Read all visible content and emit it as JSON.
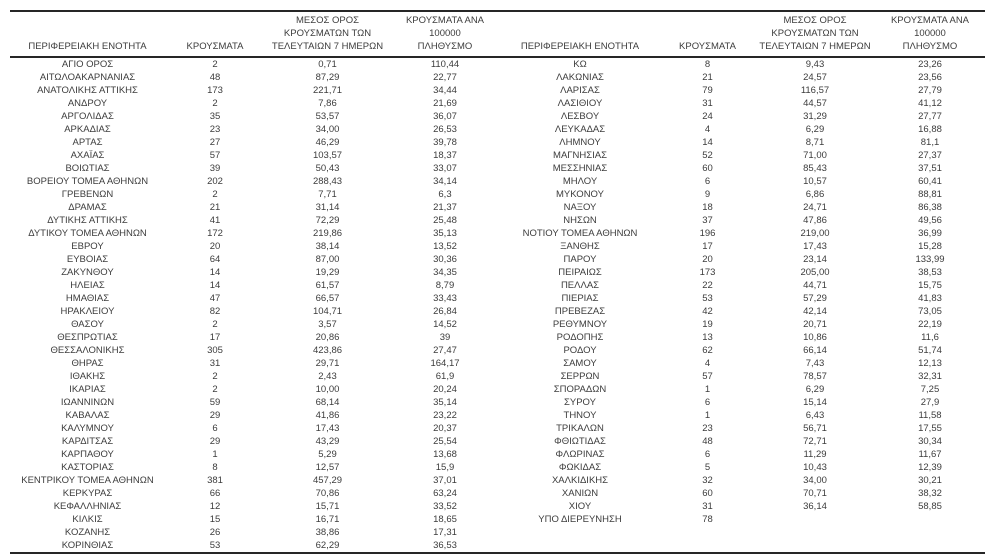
{
  "table": {
    "headers": {
      "region": "ΠΕΡΙΦΕΡΕΙΑΚΗ ΕΝΟΤΗΤΑ",
      "cases": "ΚΡΟΥΣΜΑΤΑ",
      "avg_7day": "ΜΕΣΟΣ ΟΡΟΣ\nΚΡΟΥΣΜΑΤΩΝ ΤΩΝ\nΤΕΛΕΥΤΑΙΩΝ 7 ΗΜΕΡΩΝ",
      "per_100k": "ΚΡΟΥΣΜΑΤΑ ΑΝΑ 100000\nΠΛΗΘΥΣΜΟ"
    },
    "left_rows": [
      [
        "ΑΓΙΟ ΟΡΟΣ",
        "2",
        "0,71",
        "110,44"
      ],
      [
        "ΑΙΤΩΛΟΑΚΑΡΝΑΝΙΑΣ",
        "48",
        "87,29",
        "22,77"
      ],
      [
        "ΑΝΑΤΟΛΙΚΗΣ ΑΤΤΙΚΗΣ",
        "173",
        "221,71",
        "34,44"
      ],
      [
        "ΑΝΔΡΟΥ",
        "2",
        "7,86",
        "21,69"
      ],
      [
        "ΑΡΓΟΛΙΔΑΣ",
        "35",
        "53,57",
        "36,07"
      ],
      [
        "ΑΡΚΑΔΙΑΣ",
        "23",
        "34,00",
        "26,53"
      ],
      [
        "ΑΡΤΑΣ",
        "27",
        "46,29",
        "39,78"
      ],
      [
        "ΑΧΑΪΑΣ",
        "57",
        "103,57",
        "18,37"
      ],
      [
        "ΒΟΙΩΤΙΑΣ",
        "39",
        "50,43",
        "33,07"
      ],
      [
        "ΒΟΡΕΙΟΥ ΤΟΜΕΑ ΑΘΗΝΩΝ",
        "202",
        "288,43",
        "34,14"
      ],
      [
        "ΓΡΕΒΕΝΩΝ",
        "2",
        "7,71",
        "6,3"
      ],
      [
        "ΔΡΑΜΑΣ",
        "21",
        "31,14",
        "21,37"
      ],
      [
        "ΔΥΤΙΚΗΣ ΑΤΤΙΚΗΣ",
        "41",
        "72,29",
        "25,48"
      ],
      [
        "ΔΥΤΙΚΟΥ ΤΟΜΕΑ ΑΘΗΝΩΝ",
        "172",
        "219,86",
        "35,13"
      ],
      [
        "ΕΒΡΟΥ",
        "20",
        "38,14",
        "13,52"
      ],
      [
        "ΕΥΒΟΙΑΣ",
        "64",
        "87,00",
        "30,36"
      ],
      [
        "ΖΑΚΥΝΘΟΥ",
        "14",
        "19,29",
        "34,35"
      ],
      [
        "ΗΛΕΙΑΣ",
        "14",
        "61,57",
        "8,79"
      ],
      [
        "ΗΜΑΘΙΑΣ",
        "47",
        "66,57",
        "33,43"
      ],
      [
        "ΗΡΑΚΛΕΙΟΥ",
        "82",
        "104,71",
        "26,84"
      ],
      [
        "ΘΑΣΟΥ",
        "2",
        "3,57",
        "14,52"
      ],
      [
        "ΘΕΣΠΡΩΤΙΑΣ",
        "17",
        "20,86",
        "39"
      ],
      [
        "ΘΕΣΣΑΛΟΝΙΚΗΣ",
        "305",
        "423,86",
        "27,47"
      ],
      [
        "ΘΗΡΑΣ",
        "31",
        "29,71",
        "164,17"
      ],
      [
        "ΙΘΑΚΗΣ",
        "2",
        "2,43",
        "61,9"
      ],
      [
        "ΙΚΑΡΙΑΣ",
        "2",
        "10,00",
        "20,24"
      ],
      [
        "ΙΩΑΝΝΙΝΩΝ",
        "59",
        "68,14",
        "35,14"
      ],
      [
        "ΚΑΒΑΛΑΣ",
        "29",
        "41,86",
        "23,22"
      ],
      [
        "ΚΑΛΥΜΝΟΥ",
        "6",
        "17,43",
        "20,37"
      ],
      [
        "ΚΑΡΔΙΤΣΑΣ",
        "29",
        "43,29",
        "25,54"
      ],
      [
        "ΚΑΡΠΑΘΟΥ",
        "1",
        "5,29",
        "13,68"
      ],
      [
        "ΚΑΣΤΟΡΙΑΣ",
        "8",
        "12,57",
        "15,9"
      ],
      [
        "ΚΕΝΤΡΙΚΟΥ ΤΟΜΕΑ ΑΘΗΝΩΝ",
        "381",
        "457,29",
        "37,01"
      ],
      [
        "ΚΕΡΚΥΡΑΣ",
        "66",
        "70,86",
        "63,24"
      ],
      [
        "ΚΕΦΑΛΛΗΝΙΑΣ",
        "12",
        "15,71",
        "33,52"
      ],
      [
        "ΚΙΛΚΙΣ",
        "15",
        "16,71",
        "18,65"
      ],
      [
        "ΚΟΖΑΝΗΣ",
        "26",
        "38,86",
        "17,31"
      ],
      [
        "ΚΟΡΙΝΘΙΑΣ",
        "53",
        "62,29",
        "36,53"
      ]
    ],
    "right_rows": [
      [
        "ΚΩ",
        "8",
        "9,43",
        "23,26"
      ],
      [
        "ΛΑΚΩΝΙΑΣ",
        "21",
        "24,57",
        "23,56"
      ],
      [
        "ΛΑΡΙΣΑΣ",
        "79",
        "116,57",
        "27,79"
      ],
      [
        "ΛΑΣΙΘΙΟΥ",
        "31",
        "44,57",
        "41,12"
      ],
      [
        "ΛΕΣΒΟΥ",
        "24",
        "31,29",
        "27,77"
      ],
      [
        "ΛΕΥΚΑΔΑΣ",
        "4",
        "6,29",
        "16,88"
      ],
      [
        "ΛΗΜΝΟΥ",
        "14",
        "8,71",
        "81,1"
      ],
      [
        "ΜΑΓΝΗΣΙΑΣ",
        "52",
        "71,00",
        "27,37"
      ],
      [
        "ΜΕΣΣΗΝΙΑΣ",
        "60",
        "85,43",
        "37,51"
      ],
      [
        "ΜΗΛΟΥ",
        "6",
        "10,57",
        "60,41"
      ],
      [
        "ΜΥΚΟΝΟΥ",
        "9",
        "6,86",
        "88,81"
      ],
      [
        "ΝΑΞΟΥ",
        "18",
        "24,71",
        "86,38"
      ],
      [
        "ΝΗΣΩΝ",
        "37",
        "47,86",
        "49,56"
      ],
      [
        "ΝΟΤΙΟΥ ΤΟΜΕΑ ΑΘΗΝΩΝ",
        "196",
        "219,00",
        "36,99"
      ],
      [
        "ΞΑΝΘΗΣ",
        "17",
        "17,43",
        "15,28"
      ],
      [
        "ΠΑΡΟΥ",
        "20",
        "23,14",
        "133,99"
      ],
      [
        "ΠΕΙΡΑΙΩΣ",
        "173",
        "205,00",
        "38,53"
      ],
      [
        "ΠΕΛΛΑΣ",
        "22",
        "44,71",
        "15,75"
      ],
      [
        "ΠΙΕΡΙΑΣ",
        "53",
        "57,29",
        "41,83"
      ],
      [
        "ΠΡΕΒΕΖΑΣ",
        "42",
        "42,14",
        "73,05"
      ],
      [
        "ΡΕΘΥΜΝΟΥ",
        "19",
        "20,71",
        "22,19"
      ],
      [
        "ΡΟΔΟΠΗΣ",
        "13",
        "10,86",
        "11,6"
      ],
      [
        "ΡΟΔΟΥ",
        "62",
        "66,14",
        "51,74"
      ],
      [
        "ΣΑΜΟΥ",
        "4",
        "7,43",
        "12,13"
      ],
      [
        "ΣΕΡΡΩΝ",
        "57",
        "78,57",
        "32,31"
      ],
      [
        "ΣΠΟΡΑΔΩΝ",
        "1",
        "6,29",
        "7,25"
      ],
      [
        "ΣΥΡΟΥ",
        "6",
        "15,14",
        "27,9"
      ],
      [
        "ΤΗΝΟΥ",
        "1",
        "6,43",
        "11,58"
      ],
      [
        "ΤΡΙΚΑΛΩΝ",
        "23",
        "56,71",
        "17,55"
      ],
      [
        "ΦΘΙΩΤΙΔΑΣ",
        "48",
        "72,71",
        "30,34"
      ],
      [
        "ΦΛΩΡΙΝΑΣ",
        "6",
        "11,29",
        "11,67"
      ],
      [
        "ΦΩΚΙΔΑΣ",
        "5",
        "10,43",
        "12,39"
      ],
      [
        "ΧΑΛΚΙΔΙΚΗΣ",
        "32",
        "34,00",
        "30,21"
      ],
      [
        "ΧΑΝΙΩΝ",
        "60",
        "70,71",
        "38,32"
      ],
      [
        "ΧΙΟΥ",
        "31",
        "36,14",
        "58,85"
      ],
      [
        "ΥΠΟ ΔΙΕΡΕΥΝΗΣΗ",
        "78",
        "",
        ""
      ]
    ]
  }
}
